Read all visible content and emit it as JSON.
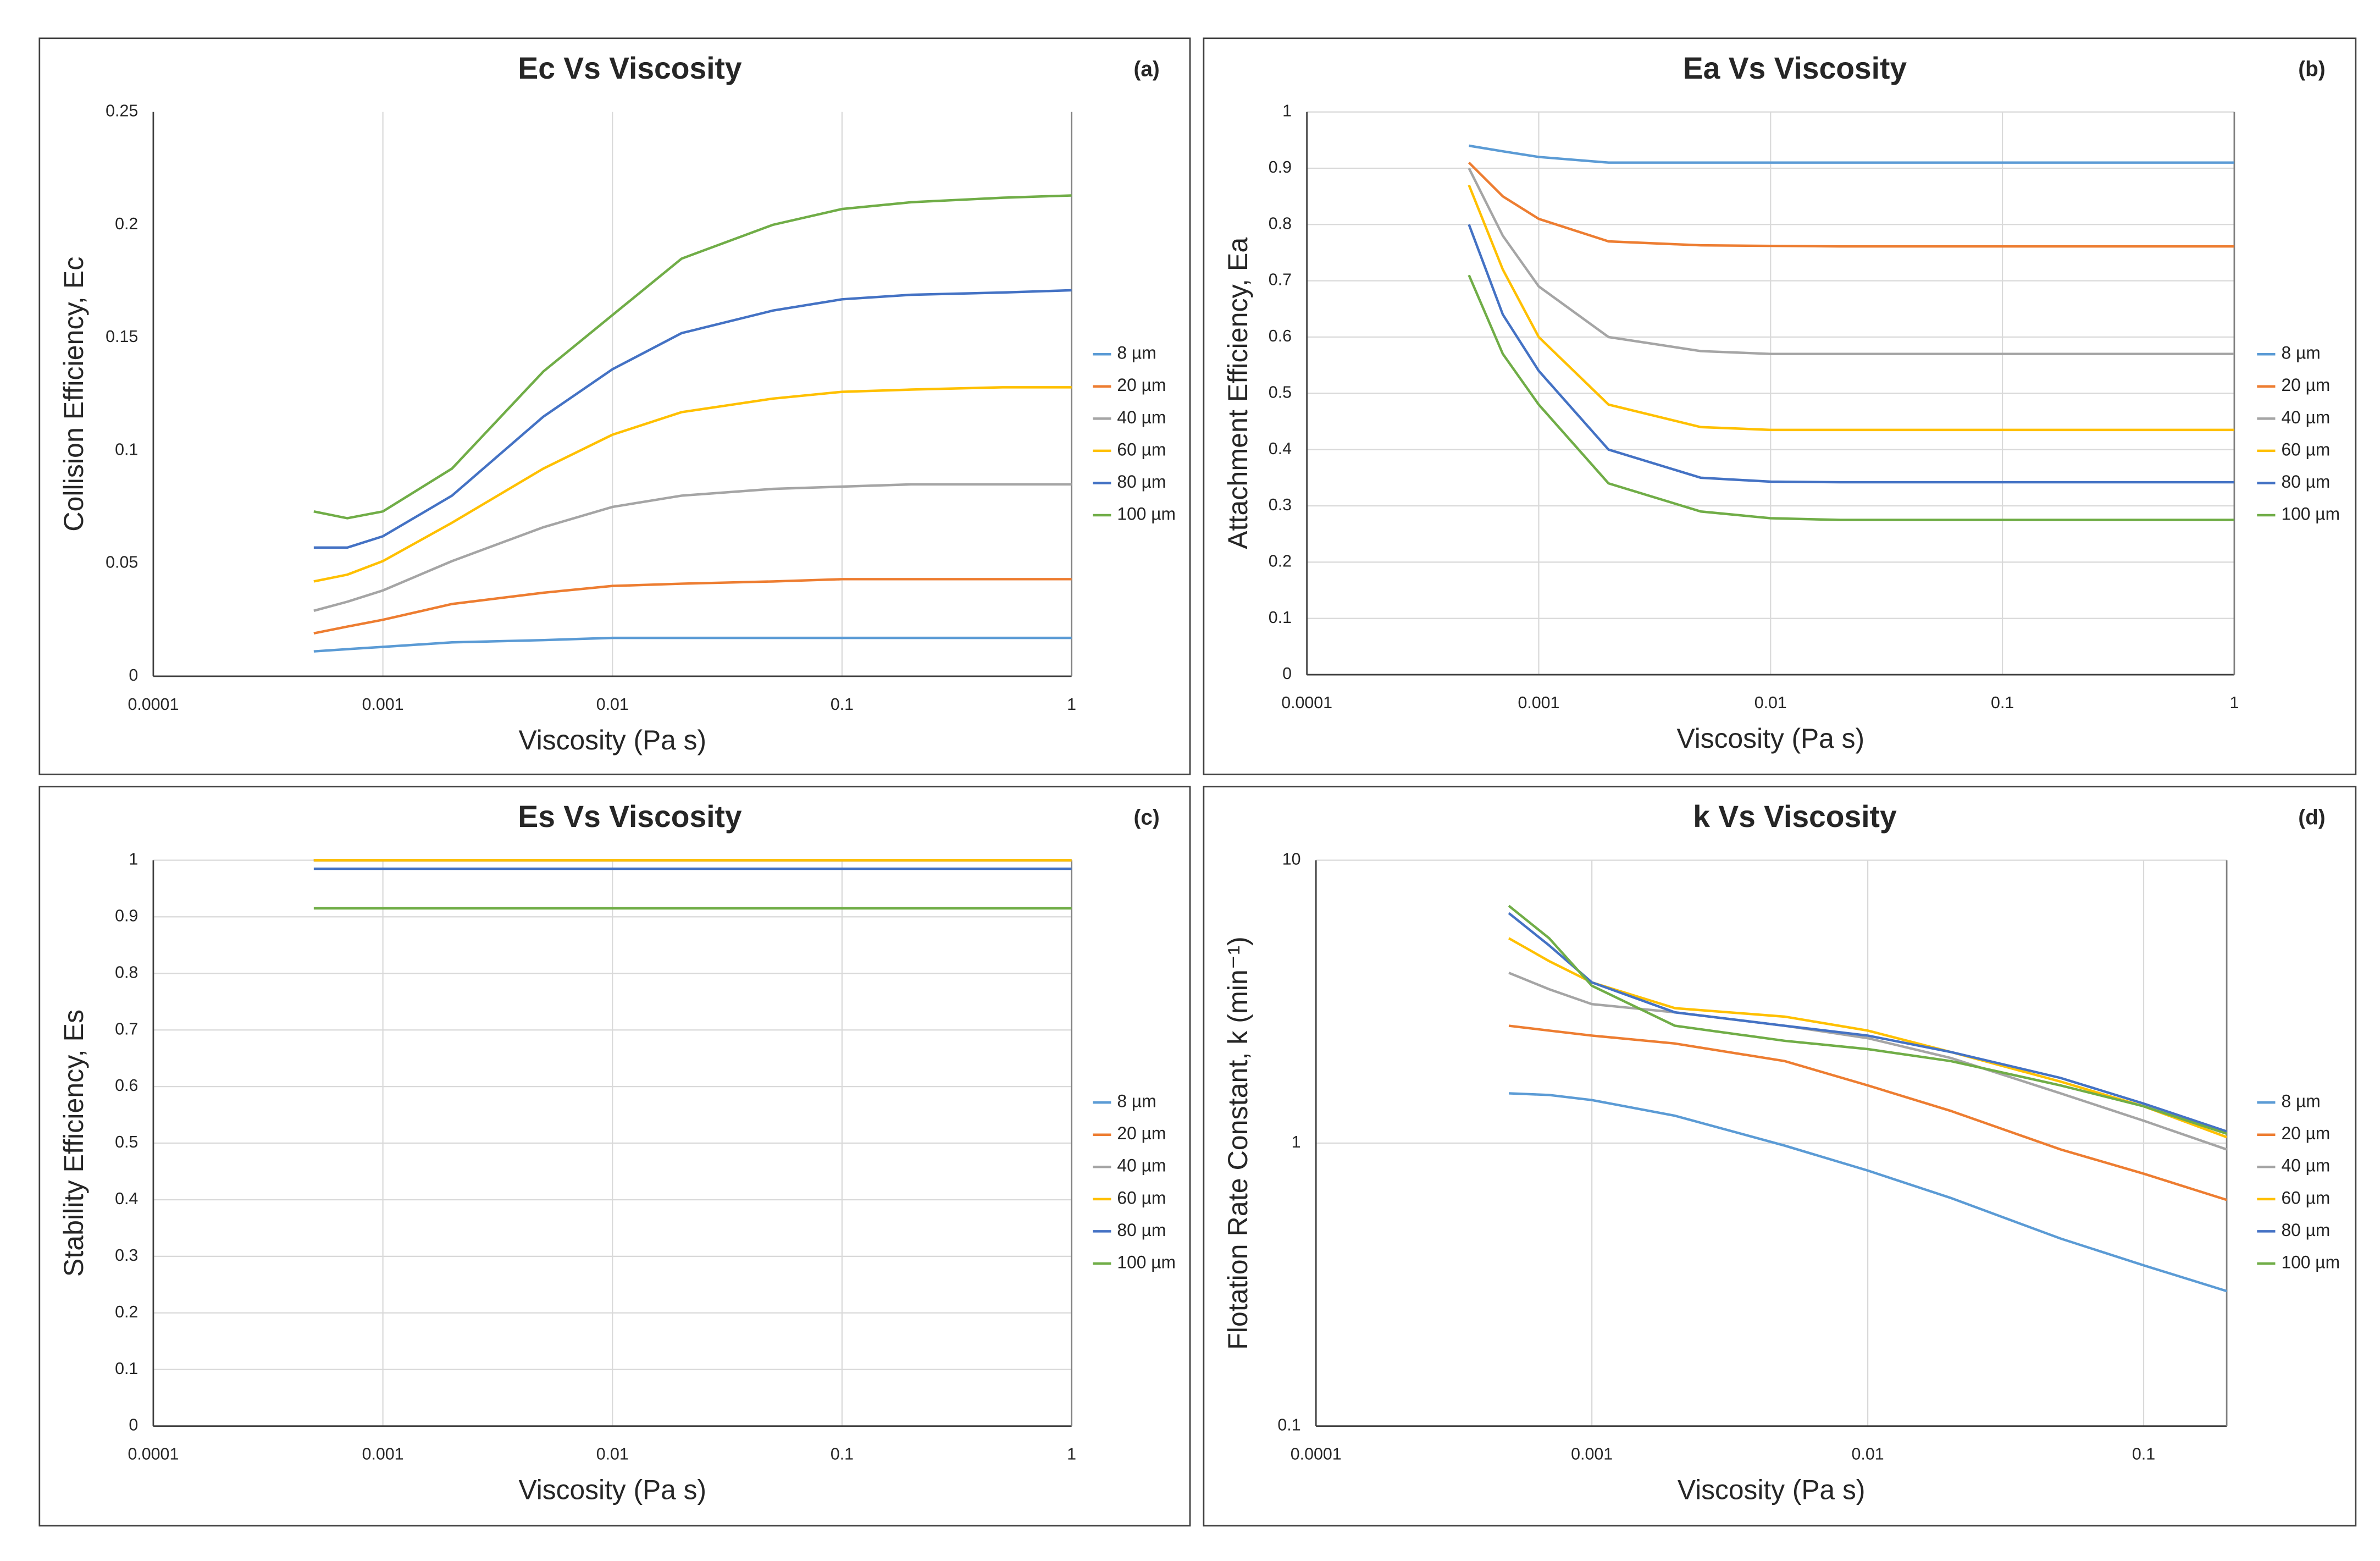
{
  "chart_data": [
    {
      "type": "line",
      "title": "Ec Vs Viscosity",
      "panel_label": "(a)",
      "x_label": "Viscosity (Pa s)",
      "y_label": "Collision Efficiency, Ec",
      "xscale": "log",
      "xlim": [
        0.0001,
        1
      ],
      "xticks": [
        0.0001,
        0.001,
        0.01,
        0.1,
        1
      ],
      "ylim": [
        0,
        0.25
      ],
      "yticks": [
        0,
        0.05,
        0.1,
        0.15,
        0.2,
        0.25
      ],
      "grid": [
        "x"
      ],
      "x": [
        0.0005,
        0.0007,
        0.001,
        0.002,
        0.005,
        0.01,
        0.02,
        0.05,
        0.1,
        0.2,
        0.5,
        1
      ],
      "series": [
        {
          "name": "8 µm",
          "color": "#5b9bd5",
          "values": [
            0.011,
            0.012,
            0.013,
            0.015,
            0.016,
            0.017,
            0.017,
            0.017,
            0.017,
            0.017,
            0.017,
            0.017
          ]
        },
        {
          "name": "20 µm",
          "color": "#ed7d31",
          "values": [
            0.019,
            0.022,
            0.025,
            0.032,
            0.037,
            0.04,
            0.041,
            0.042,
            0.043,
            0.043,
            0.043,
            0.043
          ]
        },
        {
          "name": "40 µm",
          "color": "#a5a5a5",
          "values": [
            0.029,
            0.033,
            0.038,
            0.051,
            0.066,
            0.075,
            0.08,
            0.083,
            0.084,
            0.085,
            0.085,
            0.085
          ]
        },
        {
          "name": "60 µm",
          "color": "#ffc000",
          "values": [
            0.042,
            0.045,
            0.051,
            0.068,
            0.092,
            0.107,
            0.117,
            0.123,
            0.126,
            0.127,
            0.128,
            0.128
          ]
        },
        {
          "name": "80 µm",
          "color": "#4472c4",
          "values": [
            0.057,
            0.057,
            0.062,
            0.08,
            0.115,
            0.136,
            0.152,
            0.162,
            0.167,
            0.169,
            0.17,
            0.171
          ]
        },
        {
          "name": "100 µm",
          "color": "#70ad47",
          "values": [
            0.073,
            0.07,
            0.073,
            0.092,
            0.135,
            0.16,
            0.185,
            0.2,
            0.207,
            0.21,
            0.212,
            0.213
          ]
        }
      ]
    },
    {
      "type": "line",
      "title": "Ea Vs Viscosity",
      "panel_label": "(b)",
      "x_label": "Viscosity (Pa s)",
      "y_label": "Attachment Efficiency, Ea",
      "xscale": "log",
      "xlim": [
        0.0001,
        1
      ],
      "xticks": [
        0.0001,
        0.001,
        0.01,
        0.1,
        1
      ],
      "ylim": [
        0,
        1
      ],
      "yticks": [
        0,
        0.1,
        0.2,
        0.3,
        0.4,
        0.5,
        0.6,
        0.7,
        0.8,
        0.9,
        1
      ],
      "grid": [
        "x",
        "y"
      ],
      "x": [
        0.0005,
        0.0007,
        0.001,
        0.002,
        0.005,
        0.01,
        0.02,
        0.05,
        0.1,
        0.2,
        0.5,
        1
      ],
      "series": [
        {
          "name": "8 µm",
          "color": "#5b9bd5",
          "values": [
            0.94,
            0.93,
            0.92,
            0.91,
            0.91,
            0.91,
            0.91,
            0.91,
            0.91,
            0.91,
            0.91,
            0.91
          ]
        },
        {
          "name": "20 µm",
          "color": "#ed7d31",
          "values": [
            0.91,
            0.85,
            0.81,
            0.77,
            0.763,
            0.762,
            0.761,
            0.761,
            0.761,
            0.761,
            0.761,
            0.761
          ]
        },
        {
          "name": "40 µm",
          "color": "#a5a5a5",
          "values": [
            0.9,
            0.78,
            0.69,
            0.6,
            0.575,
            0.57,
            0.57,
            0.57,
            0.57,
            0.57,
            0.57,
            0.57
          ]
        },
        {
          "name": "60 µm",
          "color": "#ffc000",
          "values": [
            0.87,
            0.72,
            0.6,
            0.48,
            0.44,
            0.435,
            0.435,
            0.435,
            0.435,
            0.435,
            0.435,
            0.435
          ]
        },
        {
          "name": "80 µm",
          "color": "#4472c4",
          "values": [
            0.8,
            0.64,
            0.54,
            0.4,
            0.35,
            0.343,
            0.342,
            0.342,
            0.342,
            0.342,
            0.342,
            0.342
          ]
        },
        {
          "name": "100 µm",
          "color": "#70ad47",
          "values": [
            0.71,
            0.57,
            0.48,
            0.34,
            0.29,
            0.278,
            0.275,
            0.275,
            0.275,
            0.275,
            0.275,
            0.275
          ]
        }
      ]
    },
    {
      "type": "line",
      "title": "Es Vs Viscosity",
      "panel_label": "(c)",
      "x_label": "Viscosity (Pa s)",
      "y_label": "Stability Efficiency, Es",
      "xscale": "log",
      "xlim": [
        0.0001,
        1
      ],
      "xticks": [
        0.0001,
        0.001,
        0.01,
        0.1,
        1
      ],
      "ylim": [
        0,
        1
      ],
      "yticks": [
        0,
        0.1,
        0.2,
        0.3,
        0.4,
        0.5,
        0.6,
        0.7,
        0.8,
        0.9,
        1
      ],
      "grid": [
        "x",
        "y"
      ],
      "x": [
        0.0005,
        1
      ],
      "series": [
        {
          "name": "8 µm",
          "color": "#5b9bd5",
          "values": [
            1,
            1
          ]
        },
        {
          "name": "20 µm",
          "color": "#ed7d31",
          "values": [
            1,
            1
          ]
        },
        {
          "name": "40 µm",
          "color": "#a5a5a5",
          "values": [
            1,
            1
          ]
        },
        {
          "name": "60 µm",
          "color": "#ffc000",
          "values": [
            1,
            1
          ]
        },
        {
          "name": "80 µm",
          "color": "#4472c4",
          "values": [
            0.985,
            0.985
          ]
        },
        {
          "name": "100 µm",
          "color": "#70ad47",
          "values": [
            0.915,
            0.915
          ]
        }
      ]
    },
    {
      "type": "line",
      "title": "k Vs Viscosity",
      "panel_label": "(d)",
      "x_label": "Viscosity (Pa s)",
      "y_label": "Flotation Rate Constant, k (min⁻¹)",
      "xscale": "log",
      "xlim": [
        0.0001,
        0.2
      ],
      "xticks": [
        0.0001,
        0.001,
        0.01,
        0.1
      ],
      "yscale": "log",
      "ylim": [
        0.1,
        10
      ],
      "yticks": [
        0.1,
        1,
        10
      ],
      "grid": [
        "x",
        "y"
      ],
      "x": [
        0.0005,
        0.0007,
        0.001,
        0.002,
        0.005,
        0.01,
        0.02,
        0.05,
        0.1,
        0.2
      ],
      "series": [
        {
          "name": "8 µm",
          "color": "#5b9bd5",
          "values": [
            1.5,
            1.48,
            1.42,
            1.25,
            0.98,
            0.8,
            0.64,
            0.46,
            0.37,
            0.3
          ]
        },
        {
          "name": "20 µm",
          "color": "#ed7d31",
          "values": [
            2.6,
            2.5,
            2.4,
            2.25,
            1.95,
            1.6,
            1.3,
            0.95,
            0.78,
            0.63
          ]
        },
        {
          "name": "40 µm",
          "color": "#a5a5a5",
          "values": [
            4.0,
            3.5,
            3.1,
            2.9,
            2.6,
            2.35,
            2.0,
            1.5,
            1.2,
            0.95
          ]
        },
        {
          "name": "60 µm",
          "color": "#ffc000",
          "values": [
            5.3,
            4.4,
            3.7,
            3.0,
            2.8,
            2.5,
            2.1,
            1.65,
            1.35,
            1.05
          ]
        },
        {
          "name": "80 µm",
          "color": "#4472c4",
          "values": [
            6.5,
            5.0,
            3.7,
            2.9,
            2.6,
            2.4,
            2.1,
            1.7,
            1.38,
            1.1
          ]
        },
        {
          "name": "100 µm",
          "color": "#70ad47",
          "values": [
            6.9,
            5.3,
            3.6,
            2.6,
            2.3,
            2.15,
            1.95,
            1.6,
            1.35,
            1.08
          ]
        }
      ]
    }
  ]
}
